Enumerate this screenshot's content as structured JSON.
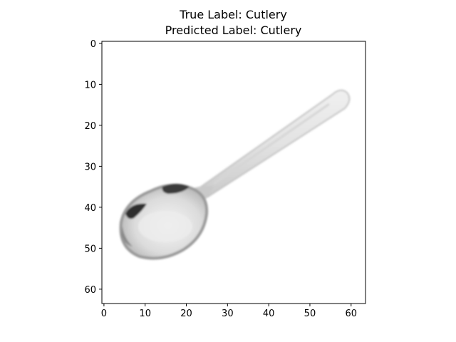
{
  "figure": {
    "title_true": "True Label: Cutlery",
    "title_pred": "Predicted Label: Cutlery"
  },
  "chart_data": {
    "type": "heatmap",
    "content": "grayscale image of a spoon (64x64 pixels)",
    "title": "True Label: Cutlery\nPredicted Label: Cutlery",
    "xlim": [
      -0.5,
      63.5
    ],
    "ylim": [
      63.5,
      -0.5
    ],
    "x_ticks": [
      0,
      10,
      20,
      30,
      40,
      50,
      60
    ],
    "y_ticks": [
      0,
      10,
      20,
      30,
      40,
      50,
      60
    ],
    "x_tick_labels": [
      "0",
      "10",
      "20",
      "30",
      "40",
      "50",
      "60"
    ],
    "y_tick_labels": [
      "0",
      "10",
      "20",
      "30",
      "40",
      "50",
      "60"
    ],
    "grid": false,
    "colormap": "gray",
    "colors": {
      "background": "#ffffff",
      "spoon_light": "#e6e6e6",
      "spoon_mid": "#bdbdbd",
      "spoon_dark": "#3a3a3a"
    }
  }
}
